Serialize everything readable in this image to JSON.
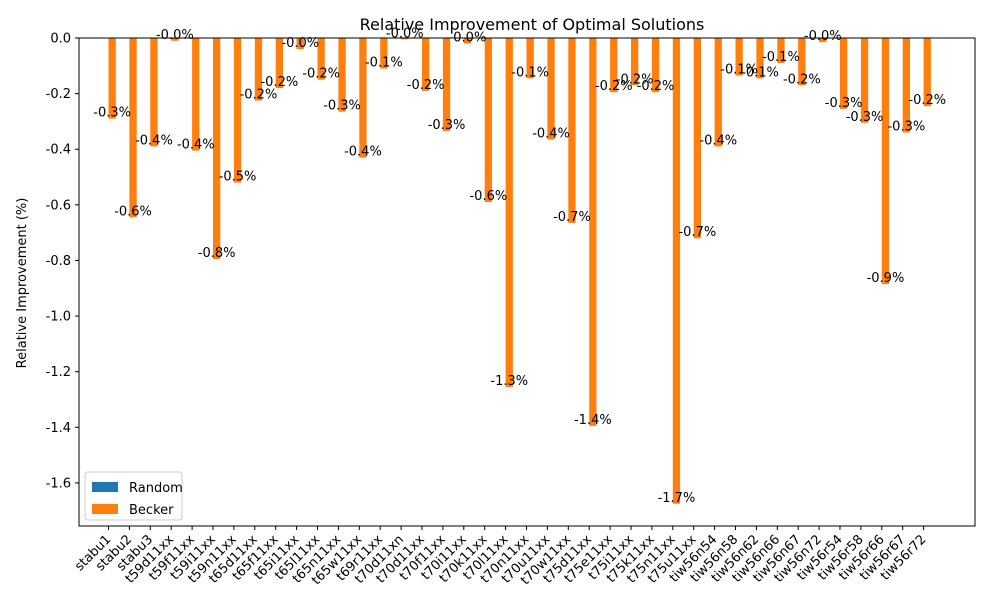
{
  "chart_data": {
    "type": "bar",
    "title": "Relative Improvement of Optimal Solutions",
    "xlabel": "",
    "ylabel": "Relative Improvement (%)",
    "ylim": [
      -1.755,
      0
    ],
    "yticks": [
      0.0,
      -0.2,
      -0.4,
      -0.6,
      -0.8,
      -1.0,
      -1.2,
      -1.4,
      -1.6
    ],
    "legend_position": "lower-left",
    "grid": false,
    "categories": [
      "stabu1",
      "stabu2",
      "stabu3",
      "t59d11xx",
      "t59f11xx",
      "t59i11xx",
      "t59n11xx",
      "t65d11xx",
      "t65f11xx",
      "t65i11xx",
      "t65l11xx",
      "t65n11xx",
      "t65w11xx",
      "t69r11xx",
      "t70d11xn",
      "t70d11xx",
      "t70f11xx",
      "t70i11xx",
      "t70k11xx",
      "t70l11xx",
      "t70n11xx",
      "t70u11xx",
      "t70w11xx",
      "t75d11xx",
      "t75e11xx",
      "t75i11xx",
      "t75k11xx",
      "t75n11xx",
      "t75u11xx",
      "tiw56n54",
      "tiw56n58",
      "tiw56n62",
      "tiw56n66",
      "tiw56n67",
      "tiw56n72",
      "tiw56r54",
      "tiw56r58",
      "tiw56r66",
      "tiw56r67",
      "tiw56r72"
    ],
    "series": [
      {
        "name": "Random",
        "color": "#1f77b4",
        "values": [
          0,
          0,
          0,
          0,
          0,
          0,
          0,
          0,
          0,
          0,
          0,
          0,
          0,
          0,
          0,
          0,
          0,
          0,
          0,
          0,
          0,
          0,
          0,
          0,
          0,
          0,
          0,
          0,
          0,
          0,
          0,
          0,
          0,
          0,
          0,
          0,
          0,
          0,
          0,
          0
        ]
      },
      {
        "name": "Becker",
        "color": "#ff7f0e",
        "values": [
          -0.29,
          -0.645,
          -0.39,
          -0.01,
          -0.405,
          -0.795,
          -0.52,
          -0.225,
          -0.18,
          -0.04,
          -0.15,
          -0.265,
          -0.43,
          -0.11,
          -0.005,
          -0.19,
          -0.335,
          -0.02,
          -0.59,
          -1.255,
          -0.145,
          -0.365,
          -0.665,
          -1.395,
          -0.195,
          -0.17,
          -0.195,
          -1.675,
          -0.72,
          -0.39,
          -0.135,
          -0.145,
          -0.09,
          -0.17,
          -0.015,
          -0.255,
          -0.305,
          -0.885,
          -0.34,
          -0.245
        ],
        "labels": [
          "-0.3%",
          "-0.6%",
          "-0.4%",
          "-0.0%",
          "-0.4%",
          "-0.8%",
          "-0.5%",
          "-0.2%",
          "-0.2%",
          "-0.0%",
          "-0.2%",
          "-0.3%",
          "-0.4%",
          "-0.1%",
          "-0.0%",
          "-0.2%",
          "-0.3%",
          "-0.0%",
          "-0.6%",
          "-1.3%",
          "-0.1%",
          "-0.4%",
          "-0.7%",
          "-1.4%",
          "-0.2%",
          "-0.2%",
          "-0.2%",
          "-1.7%",
          "-0.7%",
          "-0.4%",
          "-0.1%",
          "-0.1%",
          "-0.1%",
          "-0.2%",
          "-0.0%",
          "-0.3%",
          "-0.3%",
          "-0.9%",
          "-0.3%",
          "-0.2%"
        ]
      }
    ]
  }
}
